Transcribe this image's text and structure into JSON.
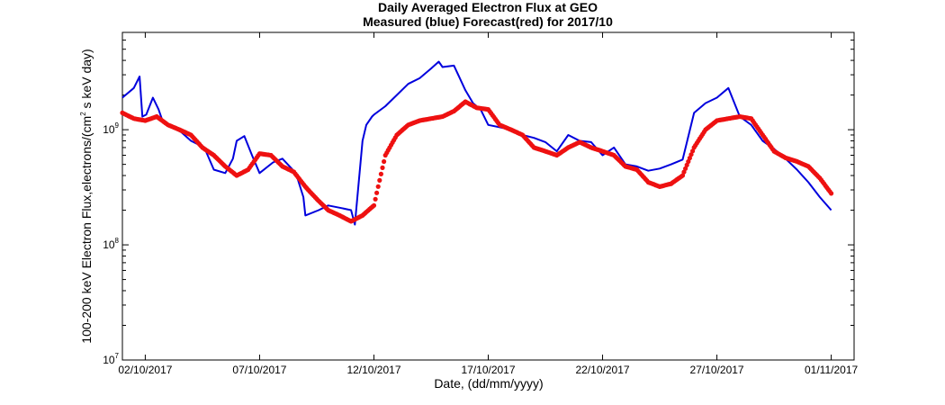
{
  "chart_data": {
    "type": "line",
    "title": "Daily Averaged Electron Flux at GEO",
    "subtitle": "Measured (blue) Forecast(red) for 2017/10",
    "xlabel": "Date, (dd/mm/yyyy)",
    "ylabel": "100-200 keV Electron Flux,electrons/(cm² s keV day)",
    "ylabel_parts": {
      "before": "100-200 keV Electron Flux,electrons/(cm",
      "superscript": "2",
      "after": " s keV day)"
    },
    "y_scale": "log",
    "ylim": [
      10000000,
      7000000000
    ],
    "xlim": [
      "2017-10-01",
      "2017-11-02"
    ],
    "x_ticks": [
      "02/10/2017",
      "07/10/2017",
      "12/10/2017",
      "17/10/2017",
      "22/10/2017",
      "27/10/2017",
      "01/11/2017"
    ],
    "y_ticks": [
      {
        "value": 10000000,
        "base": "10",
        "exp": "7"
      },
      {
        "value": 100000000,
        "base": "10",
        "exp": "8"
      },
      {
        "value": 1000000000,
        "base": "10",
        "exp": "9"
      }
    ],
    "grid": false,
    "series": [
      {
        "name": "Measured",
        "color": "#0000dd",
        "style": "line",
        "x": [
          "2017-10-01",
          "2017-10-01T12:00",
          "2017-10-01T18:00",
          "2017-10-01T21:00",
          "2017-10-02T01:00",
          "2017-10-02T08:00",
          "2017-10-02T14:00",
          "2017-10-02T18:00",
          "2017-10-03",
          "2017-10-03T14:00",
          "2017-10-04",
          "2017-10-04T14:00",
          "2017-10-05",
          "2017-10-05T12:00",
          "2017-10-05T20:00",
          "2017-10-06",
          "2017-10-06T08:00",
          "2017-10-06T16:00",
          "2017-10-07",
          "2017-10-07T14:00",
          "2017-10-08",
          "2017-10-08T14:00",
          "2017-10-08T22:00",
          "2017-10-09",
          "2017-10-09T14:00",
          "2017-10-10",
          "2017-10-10T12:00",
          "2017-10-11",
          "2017-10-11T04:00",
          "2017-10-11T12:00",
          "2017-10-11T16:00",
          "2017-10-11T22:00",
          "2017-10-12",
          "2017-10-12T12:00",
          "2017-10-13",
          "2017-10-13T12:00",
          "2017-10-14",
          "2017-10-14T12:00",
          "2017-10-14T20:00",
          "2017-10-15",
          "2017-10-15T12:00",
          "2017-10-16",
          "2017-10-16T08:00",
          "2017-10-16T16:00",
          "2017-10-17",
          "2017-10-17T12:00",
          "2017-10-18",
          "2017-10-18T12:00",
          "2017-10-19",
          "2017-10-19T12:00",
          "2017-10-20",
          "2017-10-20T12:00",
          "2017-10-21",
          "2017-10-21T12:00",
          "2017-10-22",
          "2017-10-22T12:00",
          "2017-10-23",
          "2017-10-23T12:00",
          "2017-10-24",
          "2017-10-24T12:00",
          "2017-10-25",
          "2017-10-25T12:00",
          "2017-10-26",
          "2017-10-26T12:00",
          "2017-10-27",
          "2017-10-27T12:00",
          "2017-10-28",
          "2017-10-28T12:00",
          "2017-10-29",
          "2017-10-29T12:00",
          "2017-10-30",
          "2017-10-30T12:00",
          "2017-10-31",
          "2017-10-31T12:00",
          "2017-11-01"
        ],
        "y": [
          1900000000,
          2300000000,
          2900000000,
          1300000000,
          1350000000,
          1900000000,
          1500000000,
          1200000000,
          1100000000,
          950000000,
          800000000,
          700000000,
          450000000,
          420000000,
          560000000,
          800000000,
          880000000,
          600000000,
          420000000,
          520000000,
          560000000,
          420000000,
          260000000,
          180000000,
          200000000,
          220000000,
          210000000,
          200000000,
          150000000,
          800000000,
          1100000000,
          1300000000,
          1350000000,
          1600000000,
          2000000000,
          2500000000,
          2800000000,
          3400000000,
          3900000000,
          3500000000,
          3600000000,
          2200000000,
          1700000000,
          1500000000,
          1100000000,
          1050000000,
          1000000000,
          900000000,
          850000000,
          780000000,
          650000000,
          900000000,
          800000000,
          780000000,
          600000000,
          700000000,
          500000000,
          480000000,
          440000000,
          460000000,
          500000000,
          550000000,
          1400000000,
          1700000000,
          1900000000,
          2300000000,
          1300000000,
          1100000000,
          800000000,
          680000000,
          560000000,
          450000000,
          350000000,
          260000000,
          200000000
        ]
      },
      {
        "name": "Forecast",
        "color": "#ee1111",
        "style": "markers",
        "x": [
          "2017-10-01",
          "2017-10-01T12:00",
          "2017-10-02",
          "2017-10-02T12:00",
          "2017-10-03",
          "2017-10-03T12:00",
          "2017-10-04",
          "2017-10-04T12:00",
          "2017-10-05",
          "2017-10-05T12:00",
          "2017-10-06",
          "2017-10-06T12:00",
          "2017-10-07",
          "2017-10-07T12:00",
          "2017-10-08",
          "2017-10-08T12:00",
          "2017-10-09",
          "2017-10-09T12:00",
          "2017-10-10",
          "2017-10-10T12:00",
          "2017-10-11",
          "2017-10-11T12:00",
          "2017-10-12",
          "2017-10-12T12:00",
          "2017-10-13",
          "2017-10-13T12:00",
          "2017-10-14",
          "2017-10-14T12:00",
          "2017-10-15",
          "2017-10-15T12:00",
          "2017-10-16",
          "2017-10-16T12:00",
          "2017-10-17",
          "2017-10-17T12:00",
          "2017-10-18",
          "2017-10-18T12:00",
          "2017-10-19",
          "2017-10-19T12:00",
          "2017-10-20",
          "2017-10-20T12:00",
          "2017-10-21",
          "2017-10-21T12:00",
          "2017-10-22",
          "2017-10-22T12:00",
          "2017-10-23",
          "2017-10-23T12:00",
          "2017-10-24",
          "2017-10-24T12:00",
          "2017-10-25",
          "2017-10-25T12:00",
          "2017-10-26",
          "2017-10-26T12:00",
          "2017-10-27",
          "2017-10-27T12:00",
          "2017-10-28",
          "2017-10-28T12:00",
          "2017-10-29",
          "2017-10-29T12:00",
          "2017-10-30",
          "2017-10-30T12:00",
          "2017-10-31",
          "2017-10-31T12:00",
          "2017-11-01"
        ],
        "y": [
          1400000000,
          1250000000,
          1200000000,
          1300000000,
          1100000000,
          1000000000,
          900000000,
          700000000,
          600000000,
          480000000,
          400000000,
          450000000,
          620000000,
          600000000,
          480000000,
          430000000,
          320000000,
          250000000,
          200000000,
          180000000,
          160000000,
          180000000,
          220000000,
          600000000,
          900000000,
          1100000000,
          1200000000,
          1250000000,
          1300000000,
          1450000000,
          1750000000,
          1550000000,
          1500000000,
          1100000000,
          1000000000,
          900000000,
          700000000,
          650000000,
          600000000,
          700000000,
          780000000,
          700000000,
          650000000,
          600000000,
          480000000,
          450000000,
          350000000,
          320000000,
          340000000,
          400000000,
          700000000,
          1000000000,
          1200000000,
          1250000000,
          1300000000,
          1250000000,
          900000000,
          650000000,
          570000000,
          530000000,
          480000000,
          380000000,
          280000000
        ]
      }
    ]
  }
}
